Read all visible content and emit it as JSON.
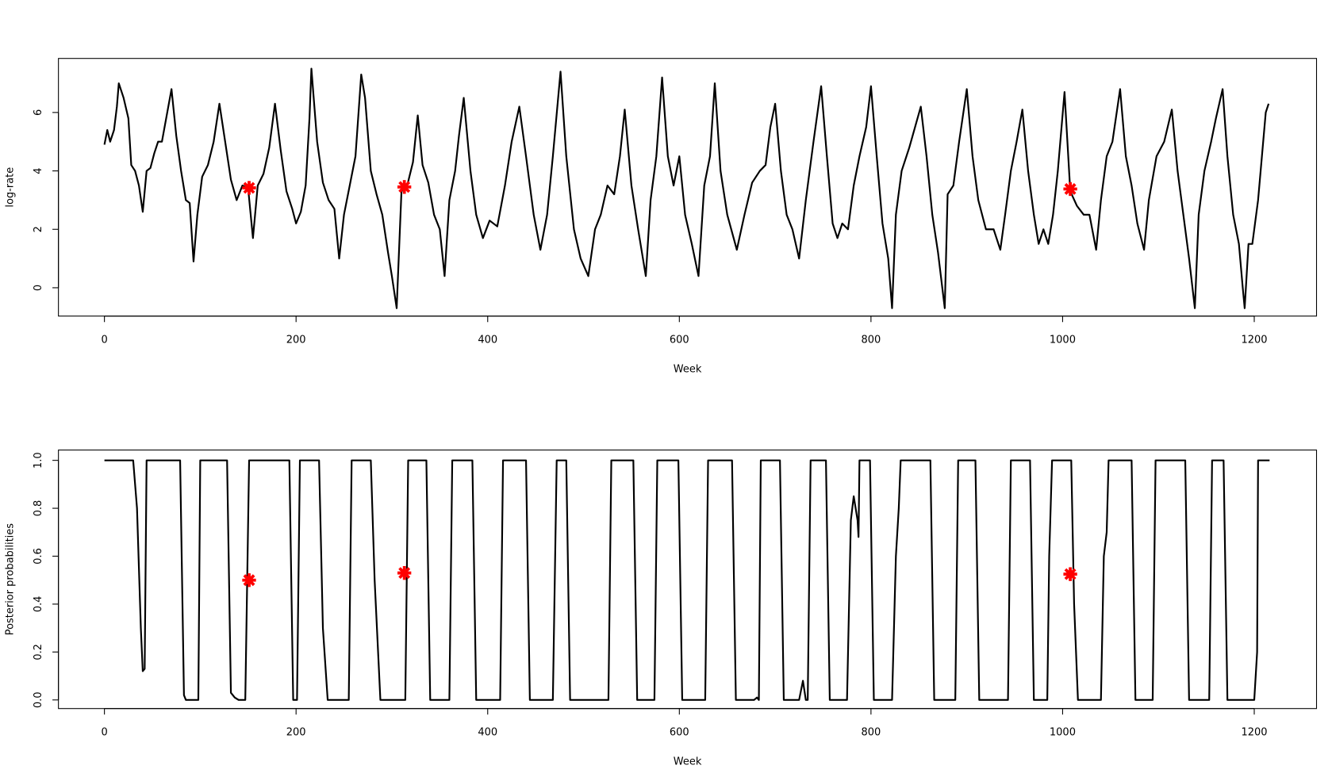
{
  "chart_data": [
    {
      "type": "line",
      "xlabel": "Week",
      "ylabel": "log-rate",
      "xlim": [
        -48,
        1265
      ],
      "ylim": [
        -0.97,
        7.85
      ],
      "xticks": [
        0,
        200,
        400,
        600,
        800,
        1000,
        1200
      ],
      "yticks": [
        0,
        2,
        4,
        6
      ],
      "series": [
        {
          "color": "#000000",
          "x": [
            0,
            3,
            6,
            10,
            13,
            15,
            20,
            25,
            28,
            32,
            36,
            40,
            44,
            48,
            52,
            56,
            60,
            65,
            70,
            75,
            80,
            85,
            89,
            93,
            97,
            102,
            108,
            114,
            120,
            126,
            132,
            138,
            144,
            150,
            155,
            160,
            166,
            172,
            178,
            184,
            190,
            196,
            200,
            205,
            210,
            214,
            216,
            222,
            228,
            234,
            240,
            245,
            250,
            256,
            262,
            268,
            272,
            278,
            284,
            290,
            296,
            300,
            305,
            310,
            316,
            322,
            327,
            332,
            338,
            344,
            350,
            355,
            360,
            366,
            370,
            375,
            382,
            388,
            395,
            402,
            410,
            418,
            425,
            433,
            440,
            448,
            455,
            462,
            468,
            476,
            482,
            490,
            497,
            505,
            512,
            518,
            525,
            532,
            538,
            543,
            550,
            557,
            565,
            570,
            576,
            582,
            588,
            594,
            600,
            606,
            613,
            620,
            626,
            632,
            637,
            643,
            650,
            660,
            668,
            676,
            684,
            690,
            695,
            700,
            706,
            712,
            718,
            725,
            732,
            740,
            748,
            754,
            760,
            765,
            770,
            776,
            782,
            788,
            795,
            800,
            806,
            812,
            818,
            822,
            826,
            832,
            840,
            846,
            852,
            858,
            864,
            870,
            877,
            880,
            886,
            892,
            900,
            906,
            912,
            920,
            928,
            935,
            940,
            946,
            952,
            958,
            964,
            970,
            975,
            980,
            985,
            990,
            995,
            1002,
            1008,
            1015,
            1022,
            1028,
            1035,
            1040,
            1046,
            1052,
            1060,
            1066,
            1072,
            1078,
            1085,
            1090,
            1098,
            1106,
            1114,
            1120,
            1126,
            1132,
            1138,
            1142,
            1148,
            1155,
            1160,
            1167,
            1172,
            1178,
            1184,
            1188,
            1190,
            1194,
            1198,
            1204,
            1208,
            1212,
            1215
          ],
          "values": [
            4.9,
            5.4,
            5.0,
            5.4,
            6.2,
            7.0,
            6.5,
            5.8,
            4.2,
            4.0,
            3.5,
            2.6,
            4.0,
            4.1,
            4.6,
            5.0,
            5.0,
            5.9,
            6.8,
            5.2,
            4.0,
            3.0,
            2.9,
            0.9,
            2.5,
            3.8,
            4.2,
            5.0,
            6.3,
            5.0,
            3.7,
            3.0,
            3.5,
            3.4,
            1.7,
            3.5,
            3.9,
            4.8,
            6.3,
            4.7,
            3.3,
            2.7,
            2.2,
            2.6,
            3.5,
            5.8,
            7.5,
            5.0,
            3.6,
            3.0,
            2.7,
            1.0,
            2.5,
            3.5,
            4.5,
            7.3,
            6.5,
            4.0,
            3.2,
            2.5,
            1.2,
            0.4,
            -0.7,
            3.3,
            3.5,
            4.3,
            5.9,
            4.2,
            3.6,
            2.5,
            2.0,
            0.4,
            3.0,
            4.0,
            5.2,
            6.5,
            4.0,
            2.5,
            1.7,
            2.3,
            2.1,
            3.5,
            5.0,
            6.2,
            4.5,
            2.5,
            1.3,
            2.5,
            4.5,
            7.4,
            4.5,
            2.0,
            1.0,
            0.4,
            2.0,
            2.5,
            3.5,
            3.2,
            4.5,
            6.1,
            3.5,
            2.0,
            0.4,
            3.0,
            4.5,
            7.2,
            4.5,
            3.5,
            4.5,
            2.5,
            1.5,
            0.4,
            3.5,
            4.5,
            7.0,
            4.0,
            2.5,
            1.3,
            2.5,
            3.6,
            4.0,
            4.2,
            5.5,
            6.3,
            4.0,
            2.5,
            2.0,
            1.0,
            3.0,
            5.0,
            6.9,
            4.5,
            2.2,
            1.7,
            2.2,
            2.0,
            3.5,
            4.5,
            5.5,
            6.9,
            4.5,
            2.2,
            1.0,
            -0.7,
            2.5,
            4.0,
            4.8,
            5.5,
            6.2,
            4.5,
            2.5,
            1.2,
            -0.7,
            3.2,
            3.5,
            5.0,
            6.8,
            4.5,
            3.0,
            2.0,
            2.0,
            1.3,
            2.5,
            4.0,
            5.0,
            6.1,
            4.0,
            2.5,
            1.5,
            2.0,
            1.5,
            2.5,
            4.0,
            6.7,
            3.3,
            2.8,
            2.5,
            2.5,
            1.3,
            3.0,
            4.5,
            5.0,
            6.8,
            4.5,
            3.5,
            2.2,
            1.3,
            3.0,
            4.5,
            5.0,
            6.1,
            4.0,
            2.5,
            1.0,
            -0.7,
            2.5,
            4.0,
            5.0,
            5.8,
            6.8,
            4.5,
            2.5,
            1.5,
            0.0,
            -0.7,
            1.5,
            1.5,
            3.0,
            4.5,
            6.0,
            6.3
          ]
        },
        {
          "color": "#ff0000",
          "marker": "asterisk",
          "x": [
            151,
            313,
            1008
          ],
          "values": [
            3.42,
            3.45,
            3.38
          ]
        }
      ]
    },
    {
      "type": "line",
      "xlabel": "Week",
      "ylabel": "Posterior probabilities",
      "xlim": [
        -48,
        1265
      ],
      "ylim": [
        -0.036,
        1.043
      ],
      "xticks": [
        0,
        200,
        400,
        600,
        800,
        1000,
        1200
      ],
      "yticks": [
        {
          "value": 0,
          "label": "0.0"
        },
        0.2,
        0.4,
        0.6,
        0.8,
        {
          "value": 1,
          "label": "1.0"
        }
      ],
      "series": [
        {
          "color": "#000000",
          "x": [
            0,
            30,
            34,
            38,
            40,
            42,
            44,
            79,
            83,
            85,
            98,
            100,
            128,
            132,
            136,
            140,
            147,
            151,
            193,
            197,
            201,
            204,
            224,
            228,
            233,
            255,
            258,
            278,
            282,
            288,
            314,
            317,
            336,
            340,
            360,
            363,
            384,
            388,
            413,
            416,
            440,
            444,
            468,
            472,
            482,
            486,
            526,
            529,
            552,
            556,
            574,
            577,
            599,
            603,
            627,
            630,
            655,
            659,
            678,
            681,
            683,
            685,
            705,
            709,
            725,
            729,
            732,
            734,
            737,
            753,
            757,
            775,
            779,
            782,
            786,
            787,
            788,
            799,
            803,
            822,
            826,
            829,
            831,
            862,
            866,
            888,
            891,
            909,
            913,
            943,
            946,
            966,
            970,
            984,
            986,
            989,
            1009,
            1012,
            1016,
            1040,
            1043,
            1046,
            1048,
            1072,
            1076,
            1094,
            1097,
            1128,
            1132,
            1153,
            1156,
            1168,
            1172,
            1200,
            1203,
            1204,
            1216
          ],
          "values": [
            1,
            1,
            0.8,
            0.3,
            0.12,
            0.13,
            1,
            1,
            0.02,
            0,
            0,
            1,
            1,
            0.03,
            0.01,
            0,
            0,
            1,
            1,
            0,
            0,
            1,
            1,
            0.3,
            0,
            0,
            1,
            1,
            0.5,
            0,
            0,
            1,
            1,
            0,
            0,
            1,
            1,
            0,
            0,
            1,
            1,
            0,
            0,
            1,
            1,
            0,
            0,
            1,
            1,
            0,
            0,
            1,
            1,
            0,
            0,
            1,
            1,
            0,
            0,
            0.01,
            0,
            1,
            1,
            0,
            0,
            0.08,
            0,
            0,
            1,
            1,
            0,
            0,
            0.75,
            0.85,
            0.75,
            0.68,
            1,
            1,
            0,
            0,
            0.6,
            0.8,
            1,
            1,
            0,
            0,
            1,
            1,
            0,
            0,
            1,
            1,
            0,
            0,
            0.6,
            1,
            1,
            0.4,
            0,
            0,
            0.6,
            0.7,
            1,
            1,
            0,
            0,
            1,
            1,
            0,
            0,
            1,
            1,
            0,
            0,
            0.2,
            1,
            1
          ]
        },
        {
          "color": "#ff0000",
          "marker": "asterisk",
          "x": [
            151,
            313,
            1008
          ],
          "values": [
            0.5,
            0.53,
            0.525
          ]
        }
      ]
    }
  ]
}
